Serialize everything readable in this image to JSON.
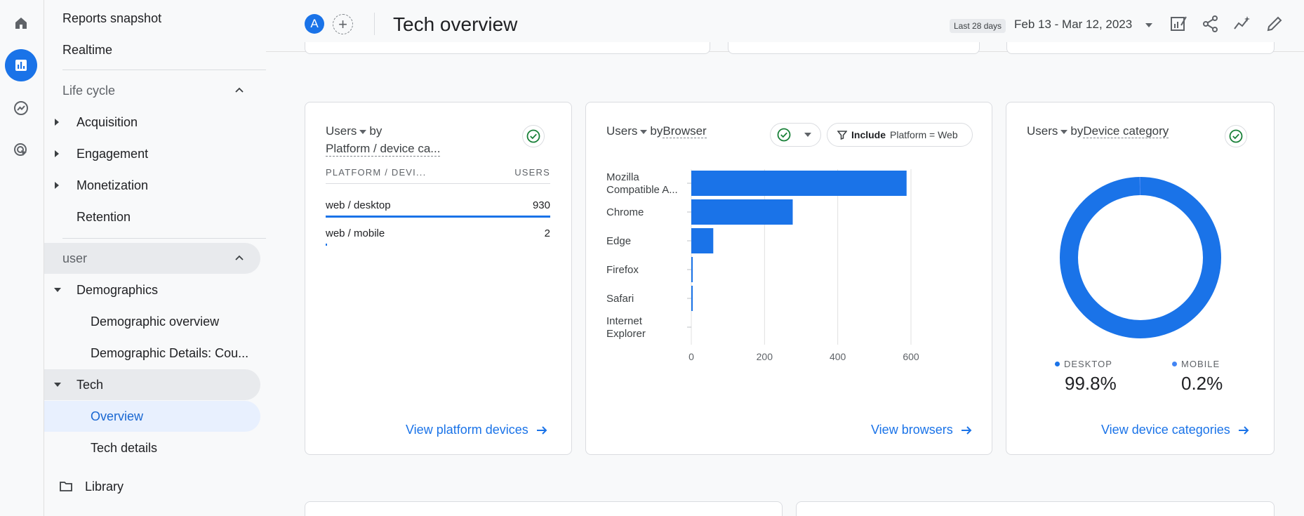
{
  "rail": {
    "items": [
      {
        "name": "home-icon"
      },
      {
        "name": "reports-icon",
        "active": true
      },
      {
        "name": "explore-icon"
      },
      {
        "name": "advertising-icon"
      }
    ]
  },
  "nav": {
    "reports_snapshot": "Reports snapshot",
    "realtime": "Realtime",
    "lifecycle_section": "Life cycle",
    "acquisition": "Acquisition",
    "engagement": "Engagement",
    "monetization": "Monetization",
    "retention": "Retention",
    "user_section": "user",
    "demographics": "Demographics",
    "demographic_overview": "Demographic overview",
    "demographic_details": "Demographic Details: Cou...",
    "tech": "Tech",
    "overview": "Overview",
    "tech_details": "Tech details",
    "library": "Library"
  },
  "header": {
    "avatar_letter": "A",
    "add_symbol": "+",
    "title": "Tech overview",
    "date_chip": "Last 28 days",
    "date_range": "Feb 13 - Mar 12, 2023"
  },
  "platform_card": {
    "title_metric": "Users",
    "title_by": "by",
    "title_dimension": "Platform / device ca...",
    "col_dimension": "PLATFORM / DEVI...",
    "col_metric": "USERS",
    "rows": [
      {
        "label": "web / desktop",
        "value": "930",
        "fraction": 1.0
      },
      {
        "label": "web / mobile",
        "value": "2",
        "fraction": 0.003
      }
    ],
    "link": "View platform devices"
  },
  "browser_card": {
    "title_metric": "Users",
    "title_by": "by",
    "title_dimension": "Browser",
    "filter_include": "Include",
    "filter_text": "Platform = Web",
    "link": "View browsers"
  },
  "chart_data": {
    "type": "bar",
    "orientation": "horizontal",
    "categories": [
      [
        "Mozilla",
        "Compatible A..."
      ],
      [
        "Chrome"
      ],
      [
        "Edge"
      ],
      [
        "Firefox"
      ],
      [
        "Safari"
      ],
      [
        "Internet",
        "Explorer"
      ]
    ],
    "values": [
      588,
      277,
      60,
      3,
      2,
      0
    ],
    "xlim": [
      0,
      600
    ],
    "xticks": [
      "0",
      "200",
      "400",
      "600"
    ],
    "grid": true,
    "color": "#1a73e8"
  },
  "device_card": {
    "title_metric": "Users",
    "title_by": "by",
    "title_dimension": "Device category",
    "segments": [
      {
        "label": "DESKTOP",
        "value": "99.8%",
        "fraction": 0.998
      },
      {
        "label": "MOBILE",
        "value": "0.2%",
        "fraction": 0.002
      }
    ],
    "link": "View device categories"
  },
  "colors": {
    "accent": "#1a73e8",
    "success": "#188038"
  }
}
